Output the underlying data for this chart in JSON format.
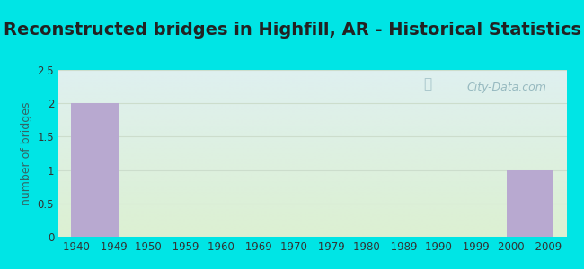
{
  "title": "Reconstructed bridges in Highfill, AR - Historical Statistics",
  "categories": [
    "1940 - 1949",
    "1950 - 1959",
    "1960 - 1969",
    "1970 - 1979",
    "1980 - 1989",
    "1990 - 1999",
    "2000 - 2009"
  ],
  "values": [
    2,
    0,
    0,
    0,
    0,
    0,
    1
  ],
  "bar_color": "#b8a9d0",
  "ylabel": "number of bridges",
  "ylim": [
    0,
    2.5
  ],
  "yticks": [
    0,
    0.5,
    1,
    1.5,
    2,
    2.5
  ],
  "background_outer": "#00e5e5",
  "bg_top": "#dff0f0",
  "bg_bottom": "#e0f0e0",
  "grid_color": "#ccddcc",
  "title_fontsize": 14,
  "title_color": "#222222",
  "label_fontsize": 9,
  "tick_fontsize": 8.5,
  "watermark": "City-Data.com"
}
